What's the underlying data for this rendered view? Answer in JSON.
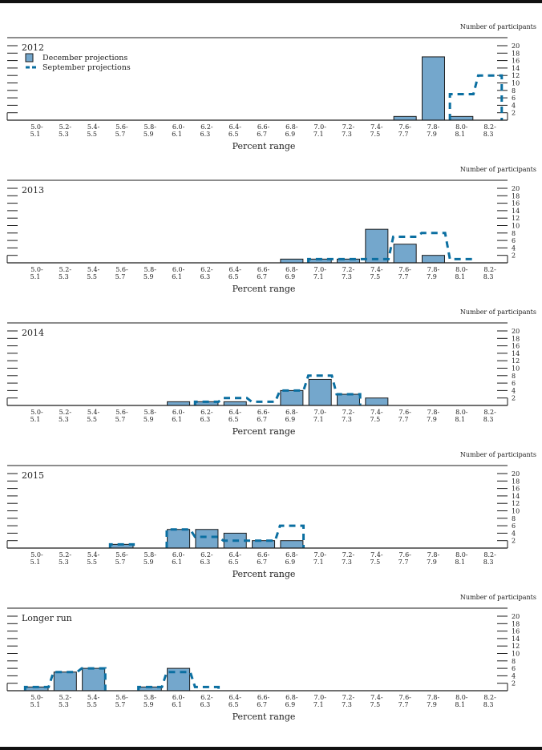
{
  "chart_data": [
    {
      "type": "bar",
      "title": "2012",
      "xlabel": "Percent range",
      "ylabel": "Number of participants",
      "categories": [
        "5.0-5.1",
        "5.2-5.3",
        "5.4-5.5",
        "5.6-5.7",
        "5.8-5.9",
        "6.0-6.1",
        "6.2-6.3",
        "6.4-6.5",
        "6.6-6.7",
        "6.8-6.9",
        "7.0-7.1",
        "7.2-7.3",
        "7.4-7.5",
        "7.6-7.7",
        "7.8-7.9",
        "8.0-8.1",
        "8.2-8.3"
      ],
      "series": [
        {
          "name": "December projections",
          "style": "bar",
          "values": [
            0,
            0,
            0,
            0,
            0,
            0,
            0,
            0,
            0,
            0,
            0,
            0,
            0,
            1,
            17,
            1,
            0
          ]
        },
        {
          "name": "September projections",
          "style": "dashed-outline",
          "values": [
            0,
            0,
            0,
            0,
            0,
            0,
            0,
            0,
            0,
            0,
            0,
            0,
            0,
            0,
            0,
            7,
            12
          ]
        }
      ],
      "yticks": [
        2,
        4,
        6,
        8,
        10,
        12,
        14,
        16,
        18,
        20
      ],
      "ylim": [
        0,
        20
      ],
      "legend": "top-left"
    },
    {
      "type": "bar",
      "title": "2013",
      "xlabel": "Percent range",
      "ylabel": "Number of participants",
      "categories": [
        "5.0-5.1",
        "5.2-5.3",
        "5.4-5.5",
        "5.6-5.7",
        "5.8-5.9",
        "6.0-6.1",
        "6.2-6.3",
        "6.4-6.5",
        "6.6-6.7",
        "6.8-6.9",
        "7.0-7.1",
        "7.2-7.3",
        "7.4-7.5",
        "7.6-7.7",
        "7.8-7.9",
        "8.0-8.1",
        "8.2-8.3"
      ],
      "series": [
        {
          "name": "December projections",
          "style": "bar",
          "values": [
            0,
            0,
            0,
            0,
            0,
            0,
            0,
            0,
            0,
            1,
            1,
            1,
            9,
            5,
            2,
            0,
            0
          ]
        },
        {
          "name": "September projections",
          "style": "dashed-outline",
          "values": [
            0,
            0,
            0,
            0,
            0,
            0,
            0,
            0,
            0,
            0,
            1,
            1,
            1,
            7,
            8,
            1,
            0
          ]
        }
      ],
      "yticks": [
        2,
        4,
        6,
        8,
        10,
        12,
        14,
        16,
        18,
        20
      ],
      "ylim": [
        0,
        20
      ]
    },
    {
      "type": "bar",
      "title": "2014",
      "xlabel": "Percent range",
      "ylabel": "Number of participants",
      "categories": [
        "5.0-5.1",
        "5.2-5.3",
        "5.4-5.5",
        "5.6-5.7",
        "5.8-5.9",
        "6.0-6.1",
        "6.2-6.3",
        "6.4-6.5",
        "6.6-6.7",
        "6.8-6.9",
        "7.0-7.1",
        "7.2-7.3",
        "7.4-7.5",
        "7.6-7.7",
        "7.8-7.9",
        "8.0-8.1",
        "8.2-8.3"
      ],
      "series": [
        {
          "name": "December projections",
          "style": "bar",
          "values": [
            0,
            0,
            0,
            0,
            0,
            1,
            1,
            1,
            0,
            4,
            7,
            3,
            2,
            0,
            0,
            0,
            0
          ]
        },
        {
          "name": "September projections",
          "style": "dashed-outline",
          "values": [
            0,
            0,
            0,
            0,
            0,
            0,
            1,
            2,
            1,
            4,
            8,
            3,
            0,
            0,
            0,
            0,
            0
          ]
        }
      ],
      "yticks": [
        2,
        4,
        6,
        8,
        10,
        12,
        14,
        16,
        18,
        20
      ],
      "ylim": [
        0,
        20
      ]
    },
    {
      "type": "bar",
      "title": "2015",
      "xlabel": "Percent range",
      "ylabel": "Number of participants",
      "categories": [
        "5.0-5.1",
        "5.2-5.3",
        "5.4-5.5",
        "5.6-5.7",
        "5.8-5.9",
        "6.0-6.1",
        "6.2-6.3",
        "6.4-6.5",
        "6.6-6.7",
        "6.8-6.9",
        "7.0-7.1",
        "7.2-7.3",
        "7.4-7.5",
        "7.6-7.7",
        "7.8-7.9",
        "8.0-8.1",
        "8.2-8.3"
      ],
      "series": [
        {
          "name": "December projections",
          "style": "bar",
          "values": [
            0,
            0,
            0,
            1,
            0,
            5,
            5,
            4,
            2,
            2,
            0,
            0,
            0,
            0,
            0,
            0,
            0
          ]
        },
        {
          "name": "September projections",
          "style": "dashed-outline",
          "values": [
            0,
            0,
            0,
            1,
            0,
            5,
            3,
            2,
            2,
            6,
            0,
            0,
            0,
            0,
            0,
            0,
            0
          ]
        }
      ],
      "yticks": [
        2,
        4,
        6,
        8,
        10,
        12,
        14,
        16,
        18,
        20
      ],
      "ylim": [
        0,
        20
      ]
    },
    {
      "type": "bar",
      "title": "Longer run",
      "xlabel": "Percent range",
      "ylabel": "Number of participants",
      "categories": [
        "5.0-5.1",
        "5.2-5.3",
        "5.4-5.5",
        "5.6-5.7",
        "5.8-5.9",
        "6.0-6.1",
        "6.2-6.3",
        "6.4-6.5",
        "6.6-6.7",
        "6.8-6.9",
        "7.0-7.1",
        "7.2-7.3",
        "7.4-7.5",
        "7.6-7.7",
        "7.8-7.9",
        "8.0-8.1",
        "8.2-8.3"
      ],
      "series": [
        {
          "name": "December projections",
          "style": "bar",
          "values": [
            1,
            5,
            6,
            0,
            1,
            6,
            0,
            0,
            0,
            0,
            0,
            0,
            0,
            0,
            0,
            0,
            0
          ]
        },
        {
          "name": "September projections",
          "style": "dashed-outline",
          "values": [
            1,
            5,
            6,
            0,
            1,
            5,
            1,
            0,
            0,
            0,
            0,
            0,
            0,
            0,
            0,
            0,
            0
          ]
        }
      ],
      "yticks": [
        2,
        4,
        6,
        8,
        10,
        12,
        14,
        16,
        18,
        20
      ],
      "ylim": [
        0,
        20
      ]
    }
  ],
  "legend": {
    "december_label": "December projections",
    "september_label": "September projections"
  },
  "colors": {
    "bar_fill": "#74a7cc",
    "bar_stroke": "#1a1a1a",
    "dash": "#0b6fa1",
    "axis": "#1a1a1a"
  }
}
